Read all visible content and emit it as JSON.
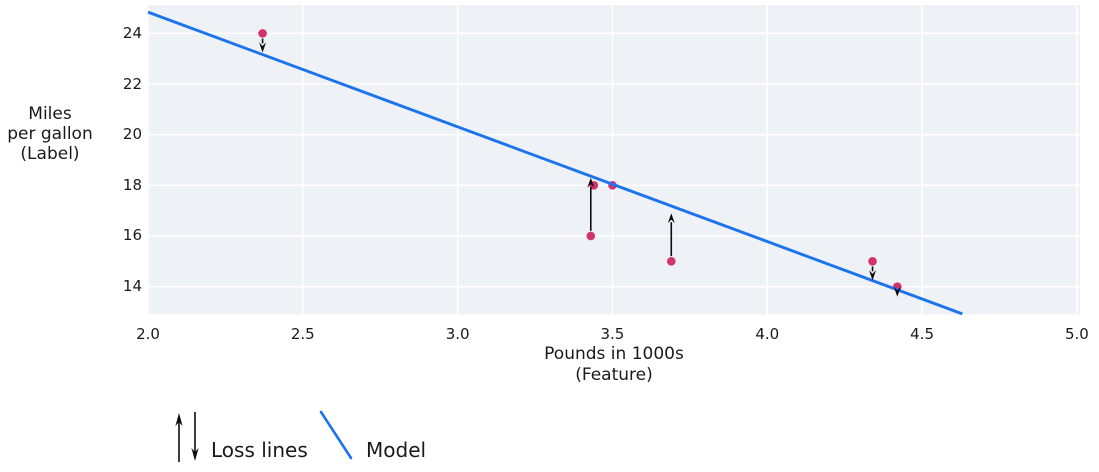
{
  "figure": {
    "y_axis_label_lines": [
      "Miles",
      "per gallon",
      "(Label)"
    ],
    "x_axis_label_lines": [
      "Pounds in 1000s",
      "(Feature)"
    ],
    "legend": {
      "loss_label": "Loss lines",
      "model_label": "Model"
    }
  },
  "chart_data": {
    "type": "scatter",
    "title": "",
    "xlabel": "Pounds in 1000s (Feature)",
    "ylabel": "Miles per gallon (Label)",
    "points": [
      {
        "x": 3.5,
        "y": 18
      },
      {
        "x": 3.69,
        "y": 15
      },
      {
        "x": 3.44,
        "y": 18
      },
      {
        "x": 3.43,
        "y": 16
      },
      {
        "x": 4.34,
        "y": 15
      },
      {
        "x": 4.42,
        "y": 14
      },
      {
        "x": 2.37,
        "y": 24
      }
    ],
    "model_line": {
      "slope": -4.53,
      "intercept": 33.9,
      "x_start": 2.0,
      "x_end": 4.63,
      "label": "Model"
    },
    "loss_arrows": [
      {
        "x": 2.37,
        "from_y": 24,
        "to_y": 23.25,
        "direction": "down"
      },
      {
        "x": 3.43,
        "from_y": 16,
        "to_y": 18.3,
        "direction": "up"
      },
      {
        "x": 3.69,
        "from_y": 15,
        "to_y": 16.9,
        "direction": "up"
      },
      {
        "x": 4.34,
        "from_y": 15,
        "to_y": 14.25,
        "direction": "down"
      },
      {
        "x": 4.42,
        "from_y": 14,
        "to_y": 13.6,
        "direction": "down"
      }
    ],
    "x_ticks": {
      "values": [
        2.0,
        2.5,
        3.0,
        3.5,
        4.0,
        4.5,
        5.0
      ],
      "labels": [
        "2.0",
        "2.5",
        "3.0",
        "3.5",
        "4.0",
        "4.5",
        "5.0"
      ]
    },
    "y_ticks": {
      "values": [
        14,
        16,
        18,
        20,
        22,
        24
      ],
      "labels": [
        "14",
        "16",
        "18",
        "20",
        "22",
        "24"
      ]
    },
    "xlim": [
      2.0,
      5.01
    ],
    "ylim": [
      12.9,
      25.12
    ],
    "grid": true,
    "legend_position": "below-left",
    "colors": {
      "point": "#d23369",
      "model_line": "#1b74ee",
      "loss_arrow": "#0d0d0d",
      "plot_background": "#eef1f6",
      "gridline": "#ffffff",
      "text": "#1a1a1a"
    }
  }
}
